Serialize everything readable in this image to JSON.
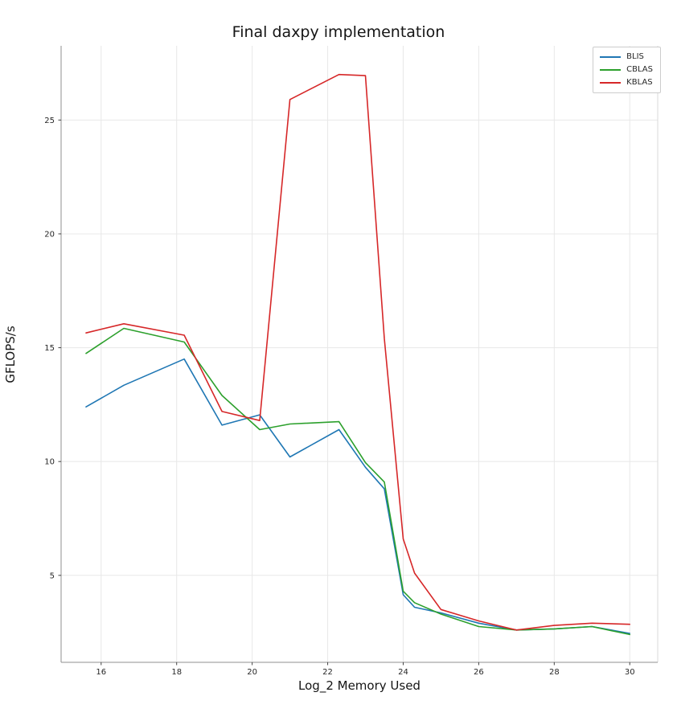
{
  "figure": {
    "background": "#ffffff"
  },
  "chart_data": {
    "type": "line",
    "title": "Final daxpy implementation",
    "xlabel": "Log_2 Memory Used",
    "ylabel": "GFLOPS/s",
    "xlim": [
      14.94,
      30.74
    ],
    "ylim": [
      1.18,
      28.26
    ],
    "xticks": [
      16,
      18,
      20,
      22,
      24,
      26,
      28,
      30
    ],
    "yticks": [
      5,
      10,
      15,
      20,
      25
    ],
    "grid": true,
    "grid_color": "#e8e8e8",
    "spine_color": "#8f8f8f",
    "right_spine_color": "#d9d9d9",
    "tick_color": "#444444",
    "tick_label_color": "#262626",
    "legend_position": "upper-right",
    "x": [
      15.6,
      16.6,
      18.2,
      19.2,
      20.2,
      21.0,
      22.3,
      23.0,
      23.5,
      24.0,
      24.3,
      25.0,
      26.0,
      27.0,
      28.0,
      29.0,
      30.0
    ],
    "series": [
      {
        "name": "BLIS",
        "color": "#1f77b4",
        "values": [
          12.4,
          13.35,
          14.5,
          11.6,
          12.05,
          10.2,
          11.4,
          9.75,
          8.8,
          4.15,
          3.6,
          3.35,
          2.9,
          2.6,
          2.65,
          2.75,
          2.45
        ]
      },
      {
        "name": "CBLAS",
        "color": "#2ca02c",
        "values": [
          14.75,
          15.85,
          15.25,
          12.9,
          11.4,
          11.65,
          11.75,
          9.95,
          9.1,
          4.3,
          3.8,
          3.3,
          2.75,
          2.6,
          2.65,
          2.75,
          2.4
        ]
      },
      {
        "name": "KBLAS",
        "color": "#d62728",
        "values": [
          15.65,
          16.05,
          15.55,
          12.2,
          11.8,
          25.9,
          27.0,
          26.95,
          15.4,
          6.6,
          5.1,
          3.5,
          3.0,
          2.6,
          2.8,
          2.9,
          2.85
        ]
      }
    ]
  }
}
